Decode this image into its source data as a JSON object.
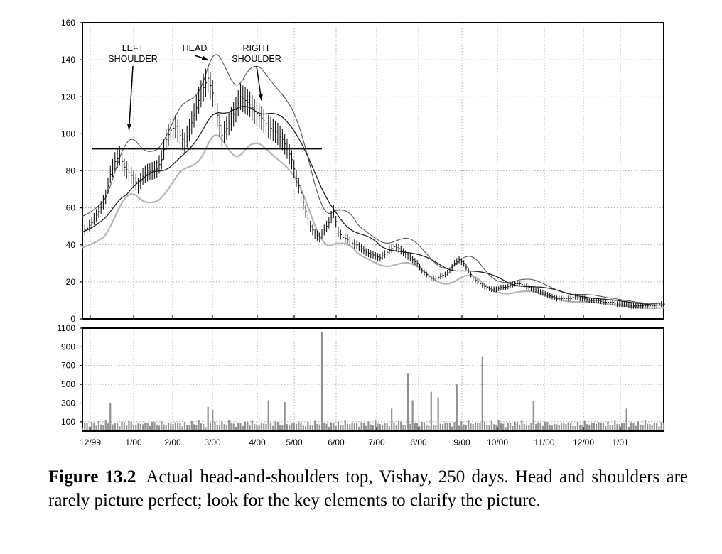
{
  "figure": {
    "label": "Figure 13.2",
    "caption": "Actual head-and-shoulders top, Vishay, 250 days. Head and shoulders are rarely picture perfect; look for the key elements to clarify the picture."
  },
  "chart_data": [
    {
      "type": "line",
      "panel": "price",
      "ylim": [
        0,
        160
      ],
      "yticks": [
        0,
        20,
        40,
        60,
        80,
        100,
        120,
        140,
        160
      ],
      "grid": true,
      "x_tick_labels": [
        "12/99",
        "1/00",
        "2/00",
        "3/00",
        "4/00",
        "5/00",
        "6/00",
        "7/00",
        "6/00",
        "9/00",
        "10/00",
        "11/00",
        "12/00",
        "1/01"
      ],
      "annotations": [
        {
          "lines": [
            "LEFT",
            "SHOULDER"
          ],
          "target_day": 20,
          "target_value": 102
        },
        {
          "lines": [
            "HEAD"
          ],
          "target_day": 54,
          "target_value": 140
        },
        {
          "lines": [
            "RIGHT",
            "SHOULDER"
          ],
          "target_day": 77,
          "target_value": 118
        }
      ],
      "neckline": {
        "value": 92,
        "x_start_day": 4,
        "x_end_day": 103
      },
      "series": [
        {
          "role": "price",
          "x": [
            0,
            2,
            4,
            6,
            8,
            10,
            12,
            14,
            16,
            18,
            20,
            22,
            24,
            26,
            28,
            30,
            32,
            34,
            36,
            38,
            40,
            42,
            44,
            46,
            48,
            50,
            52,
            54,
            56,
            58,
            60,
            62,
            64,
            66,
            68,
            70,
            72,
            74,
            76,
            78,
            80,
            82,
            84,
            86,
            88,
            90,
            92,
            94,
            96,
            98,
            100,
            102,
            104,
            106,
            108,
            110,
            112,
            114,
            116,
            118,
            120,
            122,
            124,
            126,
            128,
            130,
            132,
            134,
            136,
            138,
            140,
            142,
            144,
            146,
            148,
            150,
            152,
            154,
            156,
            158,
            160,
            162,
            164,
            166,
            168,
            170,
            172,
            174,
            176,
            178,
            180,
            182,
            184,
            186,
            188,
            190,
            192,
            194,
            196,
            198,
            200,
            202,
            204,
            206,
            208,
            210,
            212,
            214,
            216,
            218,
            220,
            222,
            224,
            226,
            228,
            230,
            232,
            234,
            236,
            238,
            240,
            242,
            244,
            246,
            248,
            250
          ],
          "y": [
            47,
            49,
            52,
            56,
            60,
            66,
            78,
            85,
            88,
            82,
            79,
            76,
            72,
            77,
            79,
            80,
            81,
            86,
            97,
            102,
            104,
            99,
            95,
            102,
            110,
            118,
            125,
            130,
            122,
            110,
            99,
            103,
            108,
            113,
            120,
            118,
            116,
            112,
            110,
            107,
            104,
            102,
            100,
            97,
            92,
            86,
            76,
            68,
            58,
            50,
            46,
            44,
            48,
            52,
            58,
            47,
            44,
            43,
            41,
            40,
            38,
            36,
            35,
            34,
            33,
            35,
            37,
            39,
            38,
            36,
            34,
            32,
            30,
            26,
            24,
            22,
            22,
            23,
            24,
            26,
            30,
            32,
            30,
            26,
            22,
            20,
            18,
            17,
            16,
            16,
            17,
            17,
            18,
            19,
            19,
            18,
            17,
            16,
            15,
            14,
            13,
            12,
            11,
            11,
            11,
            11,
            12,
            11,
            11,
            10,
            10,
            10,
            9,
            9,
            9,
            8,
            8,
            8,
            7,
            7,
            7,
            7,
            7,
            7,
            8,
            8
          ]
        }
      ]
    },
    {
      "type": "bar",
      "panel": "volume",
      "ylim": [
        0,
        1100
      ],
      "yticks": [
        100,
        300,
        500,
        700,
        900,
        1100
      ],
      "grid": true,
      "x_tick_labels": [
        "12/99",
        "1/00",
        "2/00",
        "3/00",
        "4/00",
        "5/00",
        "6/00",
        "7/00",
        "6/00",
        "9/00",
        "10/00",
        "11/00",
        "12/00",
        "1/01"
      ],
      "volume_spikes": [
        {
          "day": 12,
          "value": 300
        },
        {
          "day": 54,
          "value": 260
        },
        {
          "day": 56,
          "value": 230
        },
        {
          "day": 80,
          "value": 330
        },
        {
          "day": 87,
          "value": 310
        },
        {
          "day": 103,
          "value": 1060
        },
        {
          "day": 133,
          "value": 240
        },
        {
          "day": 140,
          "value": 620
        },
        {
          "day": 142,
          "value": 330
        },
        {
          "day": 150,
          "value": 420
        },
        {
          "day": 153,
          "value": 360
        },
        {
          "day": 161,
          "value": 500
        },
        {
          "day": 172,
          "value": 800
        },
        {
          "day": 194,
          "value": 320
        },
        {
          "day": 234,
          "value": 240
        }
      ]
    }
  ]
}
